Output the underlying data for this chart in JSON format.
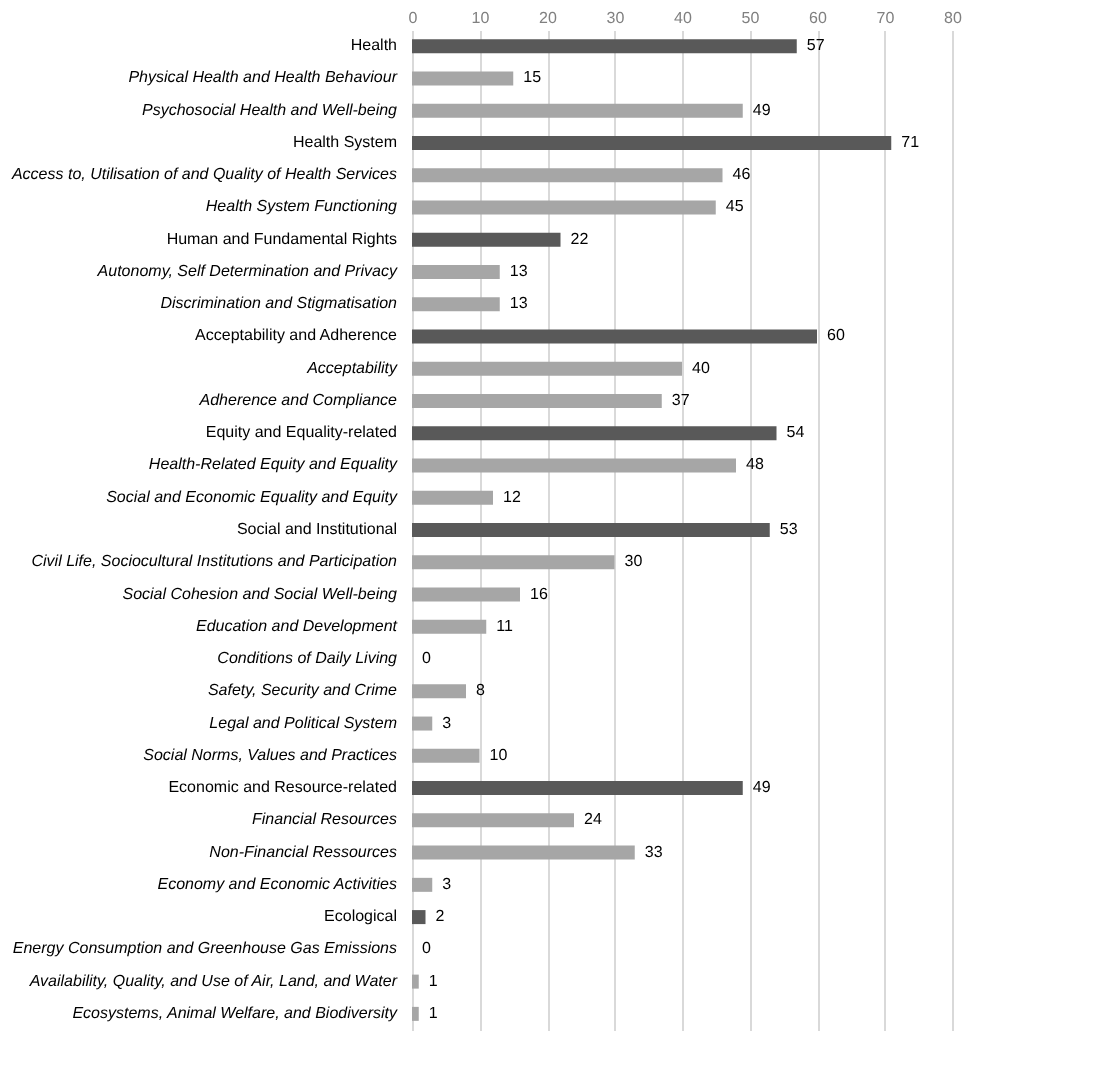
{
  "chart_data": {
    "type": "bar",
    "orientation": "horizontal",
    "categories": [
      "Health",
      "Physical Health and Health Behaviour",
      "Psychosocial Health and Well-being",
      "Health System",
      "Access to, Utilisation of and Quality of Health Services",
      "Health System Functioning",
      "Human and Fundamental Rights",
      "Autonomy, Self Determination and Privacy",
      "Discrimination and Stigmatisation",
      "Acceptability and Adherence",
      "Acceptability",
      "Adherence and Compliance",
      "Equity and Equality-related",
      "Health-Related Equity and Equality",
      "Social and Economic Equality and Equity",
      "Social and Institutional",
      "Civil Life, Sociocultural Institutions and Participation",
      "Social Cohesion and Social Well-being",
      "Education and Development",
      "Conditions of Daily Living",
      "Safety, Security and Crime",
      "Legal and Political System",
      "Social Norms, Values and Practices",
      "Economic and Resource-related",
      "Financial Resources",
      "Non-Financial Ressources",
      "Economy and Economic Activities",
      "Ecological",
      "Energy Consumption and Greenhouse Gas Emissions",
      "Availability, Quality, and Use of Air, Land, and Water",
      "Ecosystems, Animal Welfare, and Biodiversity"
    ],
    "values": [
      57,
      15,
      49,
      71,
      46,
      45,
      22,
      13,
      13,
      60,
      40,
      37,
      54,
      48,
      12,
      53,
      30,
      16,
      11,
      0,
      8,
      3,
      10,
      49,
      24,
      33,
      3,
      2,
      0,
      1,
      1
    ],
    "colors": [
      "#595959",
      "#a6a6a6",
      "#a6a6a6",
      "#595959",
      "#a6a6a6",
      "#a6a6a6",
      "#595959",
      "#a6a6a6",
      "#a6a6a6",
      "#595959",
      "#a6a6a6",
      "#a6a6a6",
      "#595959",
      "#a6a6a6",
      "#a6a6a6",
      "#595959",
      "#a6a6a6",
      "#a6a6a6",
      "#a6a6a6",
      "#a6a6a6",
      "#a6a6a6",
      "#a6a6a6",
      "#a6a6a6",
      "#595959",
      "#a6a6a6",
      "#a6a6a6",
      "#a6a6a6",
      "#595959",
      "#a6a6a6",
      "#a6a6a6",
      "#a6a6a6"
    ],
    "xlim": [
      0,
      80
    ],
    "xticks": [
      0,
      10,
      20,
      30,
      40,
      50,
      60,
      70,
      80
    ],
    "grid": "x",
    "data_labels": true
  }
}
